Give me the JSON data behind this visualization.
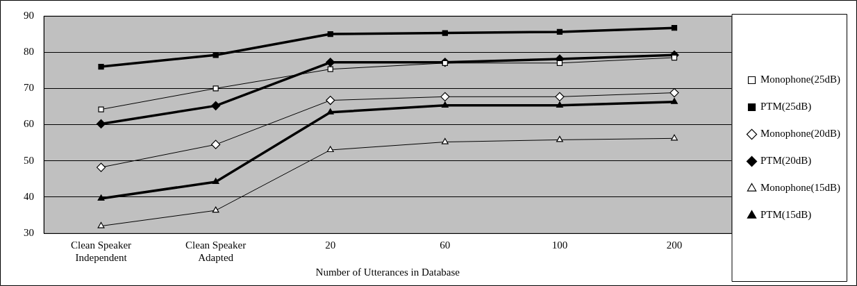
{
  "chart_data": {
    "type": "line",
    "xlabel": "Number of Utterances in Database",
    "categories": [
      "Clean Speaker Independent",
      "Clean Speaker Adapted",
      "20",
      "60",
      "100",
      "200"
    ],
    "ylim": [
      30,
      90
    ],
    "yticks": [
      30,
      40,
      50,
      60,
      70,
      80,
      90
    ],
    "grid": "y",
    "legend": "right",
    "series": [
      {
        "name": "Monophone(25dB)",
        "color": "#000000",
        "marker": "square",
        "values": [
          64.2,
          70,
          75.3,
          77,
          77,
          78.5
        ]
      },
      {
        "name": "PTM(25dB)",
        "color": "#000000",
        "marker": "square",
        "values": [
          76,
          79.2,
          85,
          85.3,
          85.6,
          86.7
        ]
      },
      {
        "name": "Monophone(20dB)",
        "color": "#000000",
        "marker": "diamond",
        "values": [
          48.2,
          54.5,
          66.7,
          67.7,
          67.7,
          68.8
        ]
      },
      {
        "name": "PTM(20dB)",
        "color": "#000000",
        "marker": "diamond",
        "values": [
          60.2,
          65.2,
          77.2,
          77.2,
          78.1,
          79.2
        ]
      },
      {
        "name": "Monophone(15dB)",
        "color": "#000000",
        "marker": "triangle",
        "values": [
          32,
          36.3,
          53,
          55.2,
          55.8,
          56.2
        ]
      },
      {
        "name": "PTM(15dB)",
        "color": "#000000",
        "marker": "triangle",
        "values": [
          39.6,
          44.2,
          63.4,
          65.3,
          65.3,
          66.3
        ]
      }
    ]
  }
}
